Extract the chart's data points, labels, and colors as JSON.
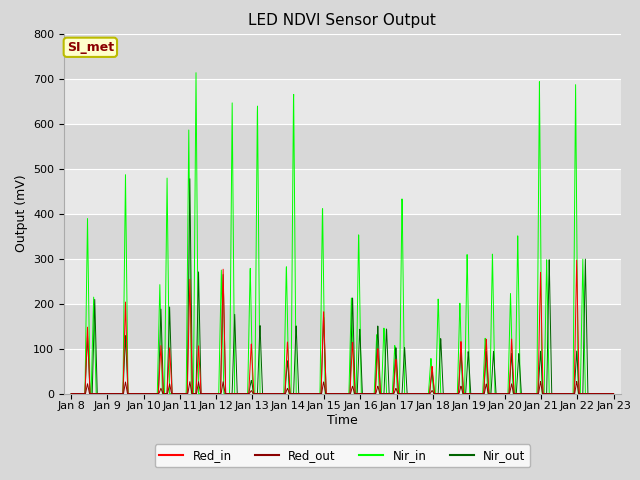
{
  "title": "LED NDVI Sensor Output",
  "xlabel": "Time",
  "ylabel": "Output (mV)",
  "ylim": [
    0,
    800
  ],
  "x_tick_labels": [
    "Jan 8",
    "Jan 9",
    "Jan 10",
    "Jan 11",
    "Jan 12",
    "Jan 13",
    "Jan 14",
    "Jan 15",
    "Jan 16",
    "Jan 17",
    "Jan 18",
    "Jan 19",
    "Jan 20",
    "Jan 21",
    "Jan 22",
    "Jan 23"
  ],
  "legend_entries": [
    "Red_in",
    "Red_out",
    "Nir_in",
    "Nir_out"
  ],
  "legend_colors": [
    "#ff0000",
    "#8b0000",
    "#00ff00",
    "#006400"
  ],
  "annotation_text": "SI_met",
  "annotation_bg": "#ffffcc",
  "annotation_border": "#bbbb00",
  "annotation_text_color": "#8b0000",
  "fig_bg": "#d8d8d8",
  "plot_bg_light": "#ebebeb",
  "plot_bg_dark": "#d8d8d8",
  "grid_color": "#ffffff",
  "title_fontsize": 11,
  "axis_fontsize": 9,
  "tick_fontsize": 8
}
